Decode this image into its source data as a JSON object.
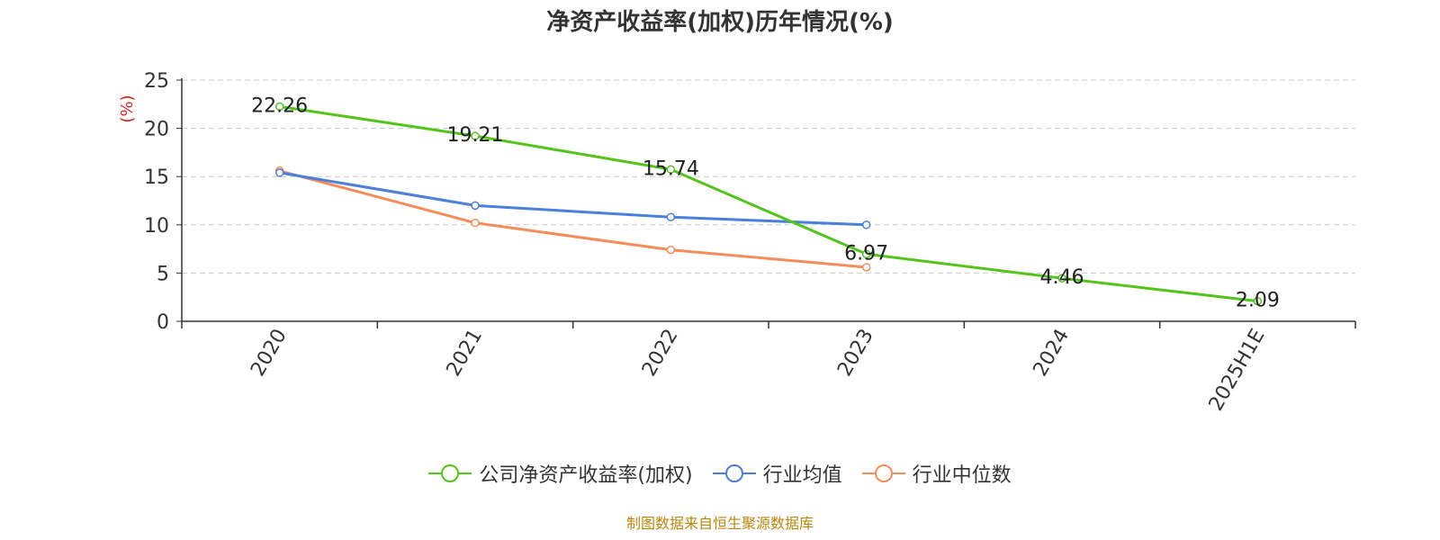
{
  "chart_data": {
    "type": "line",
    "title": "净资产收益率(加权)历年情况(%)",
    "ylabel": "(%)",
    "categories": [
      "2020",
      "2021",
      "2022",
      "2023",
      "2024",
      "2025H1E"
    ],
    "ylim": [
      0,
      25
    ],
    "yticks": [
      0,
      5,
      10,
      15,
      20,
      25
    ],
    "grid": true,
    "legend_position": "bottom",
    "series": [
      {
        "name": "公司净资产收益率(加权)",
        "color": "#52c41a",
        "values": [
          22.26,
          19.21,
          15.74,
          6.97,
          4.46,
          2.09
        ],
        "labels": [
          "22.26",
          "19.21",
          "15.74",
          "6.97",
          "4.46",
          "2.09"
        ]
      },
      {
        "name": "行业均值",
        "color": "#4a7fdc",
        "values": [
          15.4,
          12.0,
          10.8,
          10.0,
          null,
          null
        ]
      },
      {
        "name": "行业中位数",
        "color": "#f58c5a",
        "values": [
          15.6,
          10.2,
          7.4,
          5.6,
          null,
          null
        ]
      }
    ]
  },
  "source_text": "制图数据来自恒生聚源数据库",
  "source_color": "#b8860b",
  "ylabel_color": "#e02020"
}
